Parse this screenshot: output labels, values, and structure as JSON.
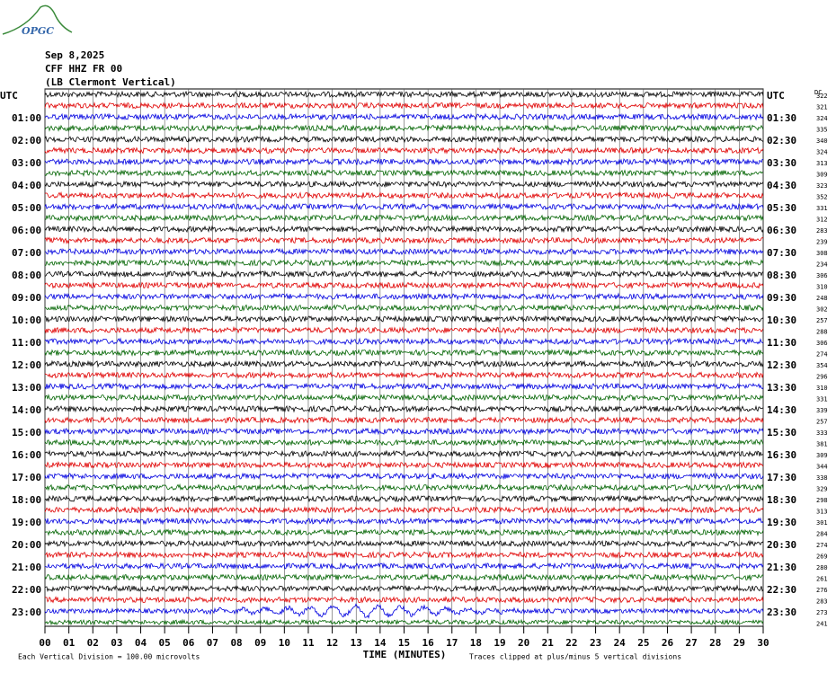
{
  "logo": "OPGC",
  "header": {
    "date": "Sep 8,2025",
    "station": "CFF HHZ FR 00",
    "location": "(LB Clermont Vertical)"
  },
  "left_labels": [
    "UTC",
    "01:00",
    "02:00",
    "03:00",
    "04:00",
    "05:00",
    "06:00",
    "07:00",
    "08:00",
    "09:00",
    "10:00",
    "11:00",
    "12:00",
    "13:00",
    "14:00",
    "15:00",
    "16:00",
    "17:00",
    "18:00",
    "19:00",
    "20:00",
    "21:00",
    "22:00",
    "23:00"
  ],
  "right_labels": [
    "UTC",
    "01:30",
    "02:30",
    "03:30",
    "04:30",
    "05:30",
    "06:30",
    "07:30",
    "08:30",
    "09:30",
    "10:30",
    "11:30",
    "12:30",
    "13:30",
    "14:30",
    "15:30",
    "16:30",
    "17:30",
    "18:30",
    "19:30",
    "20:30",
    "21:30",
    "22:30",
    "23:30"
  ],
  "right_header": "DC",
  "right_numbers": [
    322,
    321,
    324,
    335,
    340,
    324,
    313,
    309,
    323,
    352,
    331,
    312,
    283,
    239,
    308,
    234,
    306,
    310,
    248,
    302,
    257,
    288,
    306,
    274,
    354,
    296,
    310,
    331,
    339,
    257,
    333,
    381,
    309,
    344,
    338,
    329,
    298,
    313,
    301,
    284,
    274,
    269,
    280,
    261,
    276,
    283,
    273,
    241
  ],
  "x_ticks": [
    "00",
    "01",
    "02",
    "03",
    "04",
    "05",
    "06",
    "07",
    "08",
    "09",
    "10",
    "11",
    "12",
    "13",
    "14",
    "15",
    "16",
    "17",
    "18",
    "19",
    "20",
    "21",
    "22",
    "23",
    "24",
    "25",
    "26",
    "27",
    "28",
    "29",
    "30"
  ],
  "x_title": "TIME (MINUTES)",
  "footer": {
    "scale": "Each Vertical Division =  100.00 microvolts",
    "clip": "Traces clipped at plus/minus 5 vertical divisions"
  }
}
